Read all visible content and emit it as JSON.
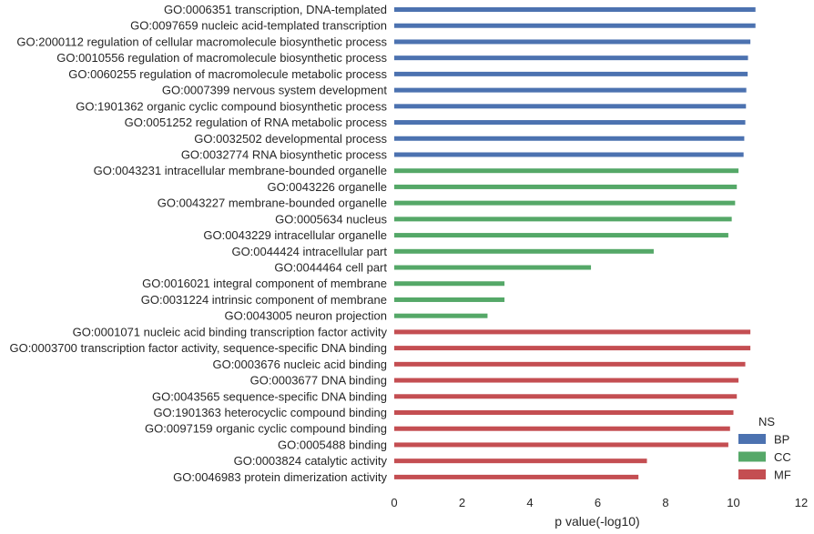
{
  "chart_data": {
    "type": "bar",
    "orientation": "horizontal",
    "xlabel": "p value(-log10)",
    "ylabel": "",
    "xlim": [
      0,
      12
    ],
    "xticks": [
      "0",
      "2",
      "4",
      "6",
      "8",
      "10",
      "12"
    ],
    "grid": false,
    "legend": {
      "title": "NS",
      "position": "bottom-right",
      "entries": [
        {
          "name": "BP",
          "color": "#4c72b0"
        },
        {
          "name": "CC",
          "color": "#55a868"
        },
        {
          "name": "MF",
          "color": "#c44e52"
        }
      ]
    },
    "categories": [
      "GO:0006351 transcription, DNA-templated",
      "GO:0097659 nucleic acid-templated transcription",
      "GO:2000112 regulation of cellular macromolecule biosynthetic process",
      "GO:0010556 regulation of macromolecule biosynthetic process",
      "GO:0060255 regulation of macromolecule metabolic process",
      "GO:0007399 nervous system development",
      "GO:1901362 organic cyclic compound biosynthetic process",
      "GO:0051252 regulation of RNA metabolic process",
      "GO:0032502 developmental process",
      "GO:0032774 RNA biosynthetic process",
      "GO:0043231 intracellular membrane-bounded organelle",
      "GO:0043226 organelle",
      "GO:0043227 membrane-bounded organelle",
      "GO:0005634 nucleus",
      "GO:0043229 intracellular organelle",
      "GO:0044424 intracellular part",
      "GO:0044464 cell part",
      "GO:0016021 integral component of membrane",
      "GO:0031224 intrinsic component of membrane",
      "GO:0043005 neuron projection",
      "GO:0001071 nucleic acid binding transcription factor activity",
      "GO:0003700 transcription factor activity, sequence-specific DNA binding",
      "GO:0003676 nucleic acid binding",
      "GO:0003677 DNA binding",
      "GO:0043565 sequence-specific DNA binding",
      "GO:1901363 heterocyclic compound binding",
      "GO:0097159 organic cyclic compound binding",
      "GO:0005488 binding",
      "GO:0003824 catalytic activity",
      "GO:0046983 protein dimerization activity"
    ],
    "groups": [
      "BP",
      "BP",
      "BP",
      "BP",
      "BP",
      "BP",
      "BP",
      "BP",
      "BP",
      "BP",
      "CC",
      "CC",
      "CC",
      "CC",
      "CC",
      "CC",
      "CC",
      "CC",
      "CC",
      "CC",
      "MF",
      "MF",
      "MF",
      "MF",
      "MF",
      "MF",
      "MF",
      "MF",
      "MF",
      "MF"
    ],
    "values": [
      10.65,
      10.65,
      10.5,
      10.43,
      10.42,
      10.38,
      10.37,
      10.35,
      10.32,
      10.3,
      10.15,
      10.1,
      10.05,
      9.95,
      9.85,
      7.65,
      5.8,
      3.25,
      3.25,
      2.75,
      10.5,
      10.5,
      10.35,
      10.15,
      10.1,
      10.0,
      9.9,
      9.85,
      7.45,
      7.2
    ]
  }
}
